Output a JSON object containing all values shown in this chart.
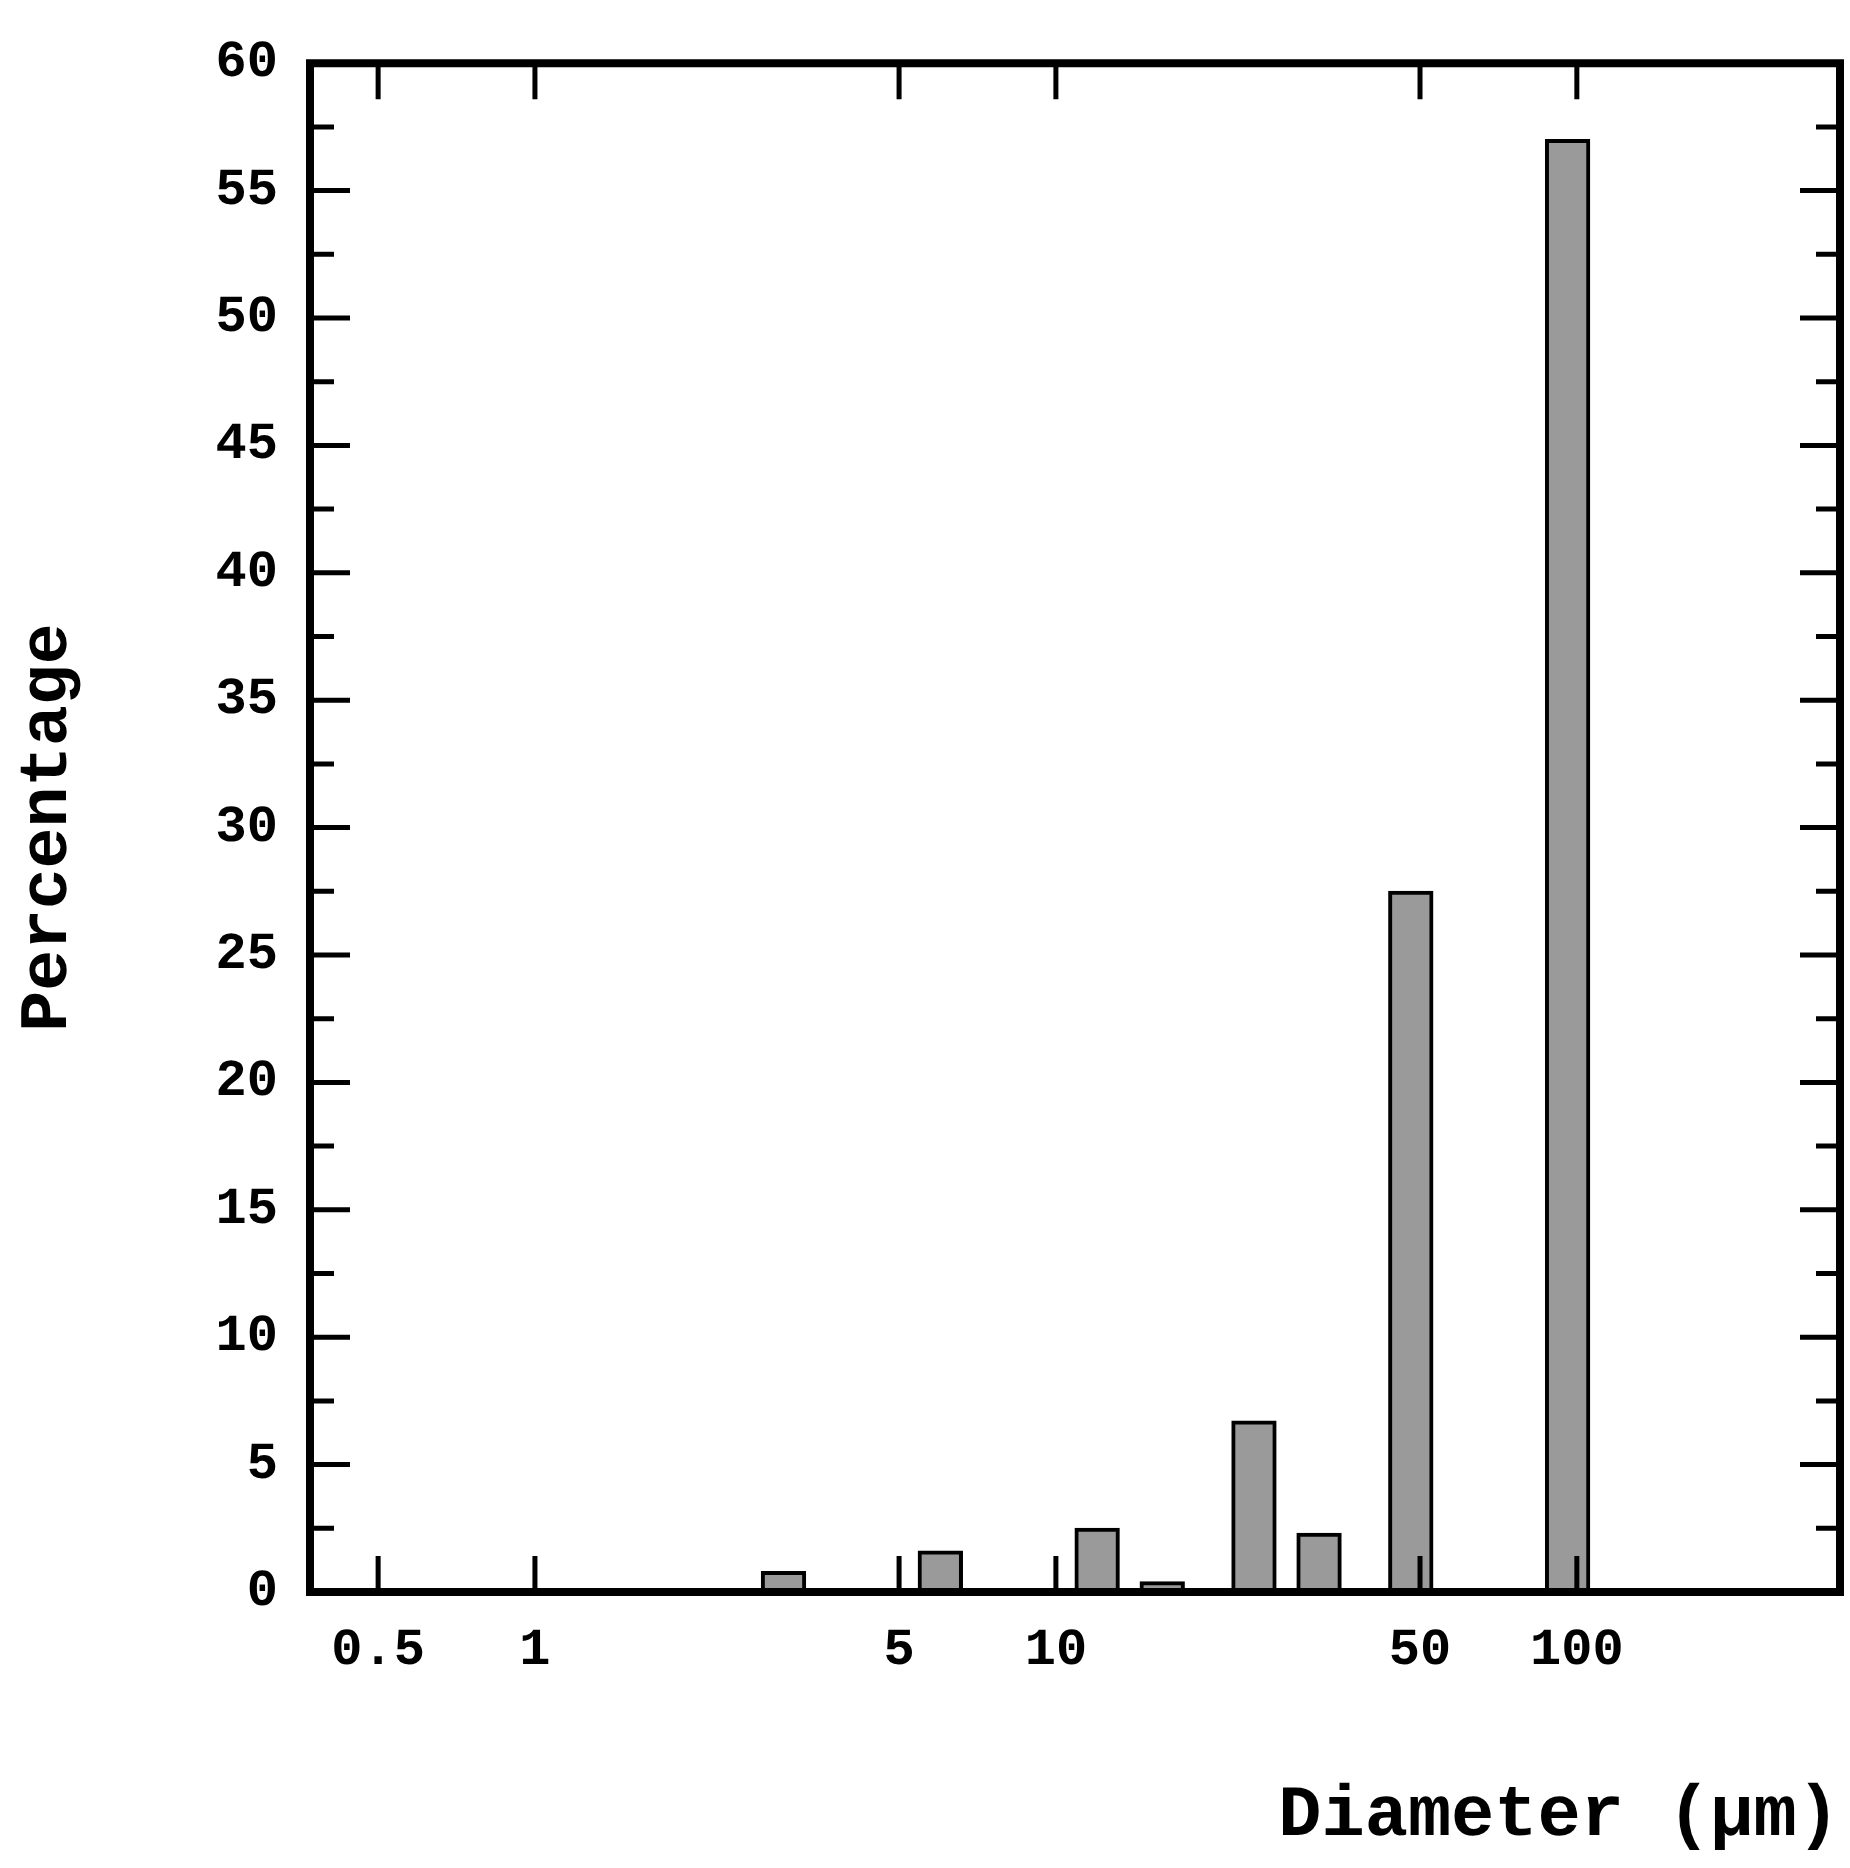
{
  "chart_data": {
    "type": "bar",
    "xlabel": "Diameter (μm)",
    "ylabel": "Percentage",
    "log": "x",
    "x": [
      3,
      6,
      12,
      16,
      24,
      32,
      48,
      96
    ],
    "values": [
      0.8,
      1.6,
      2.5,
      0.4,
      6.7,
      2.3,
      27.5,
      57.0
    ],
    "color": "#9a9a9a",
    "xlim": [
      0.37,
      320
    ],
    "xticks": [
      0.5,
      1,
      5,
      10,
      50,
      100
    ],
    "ylim": [
      0,
      60
    ],
    "yticks": [
      0,
      {
        "value": 2.5,
        "label": null
      },
      5,
      {
        "value": 7.5,
        "label": null
      },
      10,
      {
        "value": 12.5,
        "label": null
      },
      15,
      {
        "value": 17.5,
        "label": null
      },
      20,
      {
        "value": 22.5,
        "label": null
      },
      25,
      {
        "value": 27.5,
        "label": null
      },
      30,
      {
        "value": 32.5,
        "label": null
      },
      35,
      {
        "value": 37.5,
        "label": null
      },
      40,
      {
        "value": 42.5,
        "label": null
      },
      45,
      {
        "value": 47.5,
        "label": null
      },
      50,
      {
        "value": 52.5,
        "label": null
      },
      55,
      {
        "value": 57.5,
        "label": null
      },
      60
    ],
    "grid": false,
    "legend": false
  }
}
